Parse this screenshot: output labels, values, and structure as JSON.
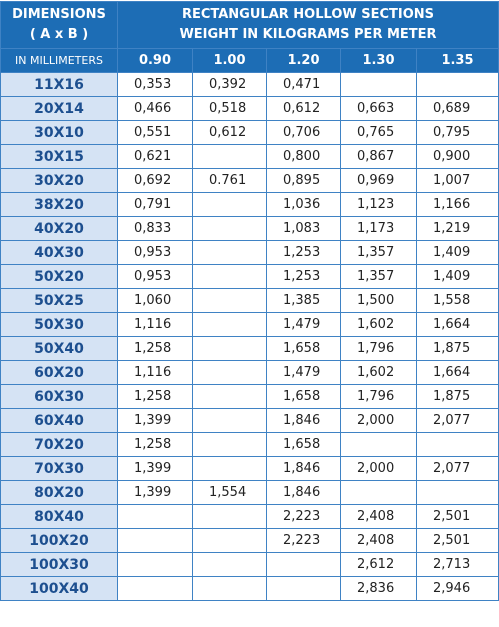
{
  "header": {
    "dimensions": "DIMENSIONS",
    "axb": "( A x B )",
    "unit": "IN MILLIMETERS",
    "title": "RECTANGULAR HOLLOW SECTIONS",
    "subtitle": "WEIGHT IN KILOGRAMS PER METER",
    "columns": [
      "0.90",
      "1.00",
      "1.20",
      "1.30",
      "1.35"
    ]
  },
  "table": {
    "rows": [
      [
        "11X16",
        "0,353",
        "0,392",
        "0,471",
        null,
        null
      ],
      [
        "20X14",
        "0,466",
        "0,518",
        "0,612",
        "0,663",
        "0,689"
      ],
      [
        "30X10",
        "0,551",
        "0,612",
        "0,706",
        "0,765",
        "0,795"
      ],
      [
        "30X15",
        "0,621",
        null,
        "0,800",
        "0,867",
        "0,900"
      ],
      [
        "30X20",
        "0,692",
        "0.761",
        "0,895",
        "0,969",
        "1,007"
      ],
      [
        "38X20",
        "0,791",
        null,
        "1,036",
        "1,123",
        "1,166"
      ],
      [
        "40X20",
        "0,833",
        null,
        "1,083",
        "1,173",
        "1,219"
      ],
      [
        "40X30",
        "0,953",
        null,
        "1,253",
        "1,357",
        "1,409"
      ],
      [
        "50X20",
        "0,953",
        null,
        "1,253",
        "1,357",
        "1,409"
      ],
      [
        "50X25",
        "1,060",
        null,
        "1,385",
        "1,500",
        "1,558"
      ],
      [
        "50X30",
        "1,116",
        null,
        "1,479",
        "1,602",
        "1,664"
      ],
      [
        "50X40",
        "1,258",
        null,
        "1,658",
        "1,796",
        "1,875"
      ],
      [
        "60X20",
        "1,116",
        null,
        "1,479",
        "1,602",
        "1,664"
      ],
      [
        "60X30",
        "1,258",
        null,
        "1,658",
        "1,796",
        "1,875"
      ],
      [
        "60X40",
        "1,399",
        null,
        "1,846",
        "2,000",
        "2,077"
      ],
      [
        "70X20",
        "1,258",
        null,
        "1,658",
        null,
        null
      ],
      [
        "70X30",
        "1,399",
        null,
        "1,846",
        "2,000",
        "2,077"
      ],
      [
        "80X20",
        "1,399",
        "1,554",
        "1,846",
        null,
        null
      ],
      [
        "80X40",
        null,
        null,
        "2,223",
        "2,408",
        "2,501"
      ],
      [
        "100X20",
        null,
        null,
        "2,223",
        "2,408",
        "2,501"
      ],
      [
        "100X30",
        null,
        null,
        null,
        "2,612",
        "2,713"
      ],
      [
        "100X40",
        null,
        null,
        null,
        "2,836",
        "2,946"
      ]
    ]
  }
}
